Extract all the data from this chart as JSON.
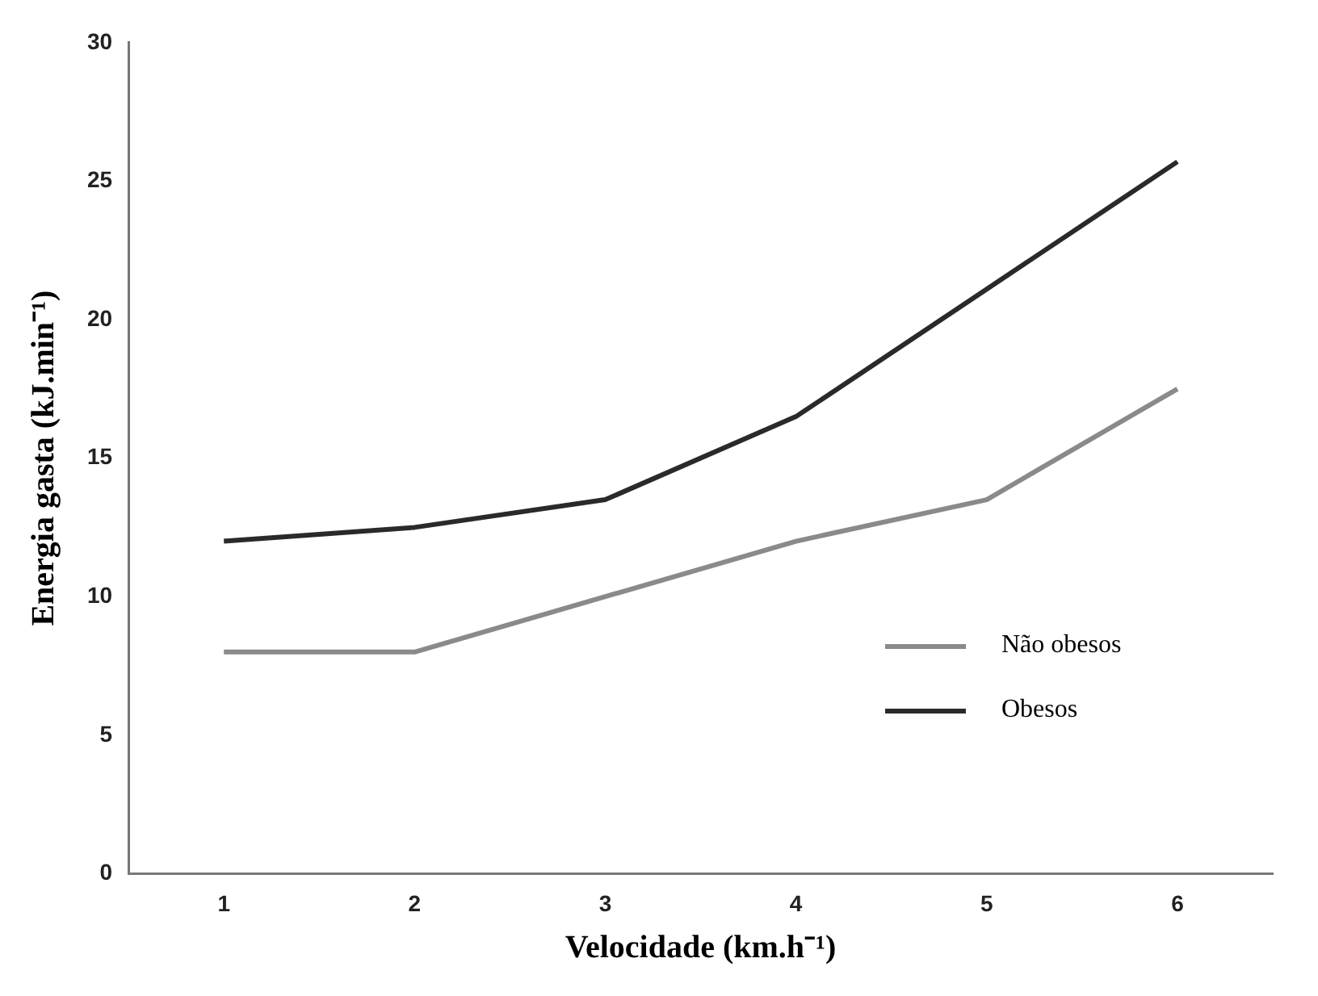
{
  "chart_data": {
    "type": "line",
    "xlabel": "Velocidade (km.h⁻¹)",
    "ylabel": "Energia gasta (kJ.min⁻¹)",
    "categories": [
      "1",
      "2",
      "3",
      "4",
      "5",
      "6"
    ],
    "series": [
      {
        "name": "Não obesos",
        "color": "#8a8a8a",
        "values": [
          8,
          8,
          10,
          12,
          13.5,
          17.5
        ]
      },
      {
        "name": "Obesos",
        "color": "#2a2a2a",
        "values": [
          12,
          12.5,
          13.5,
          16.5,
          21.1,
          25.7
        ]
      }
    ],
    "ylim": [
      0,
      30
    ],
    "yticks": [
      0,
      5,
      10,
      15,
      20,
      25,
      30
    ],
    "grid": false,
    "legend": "bottom right",
    "marker": "none",
    "line_style": "solid"
  }
}
